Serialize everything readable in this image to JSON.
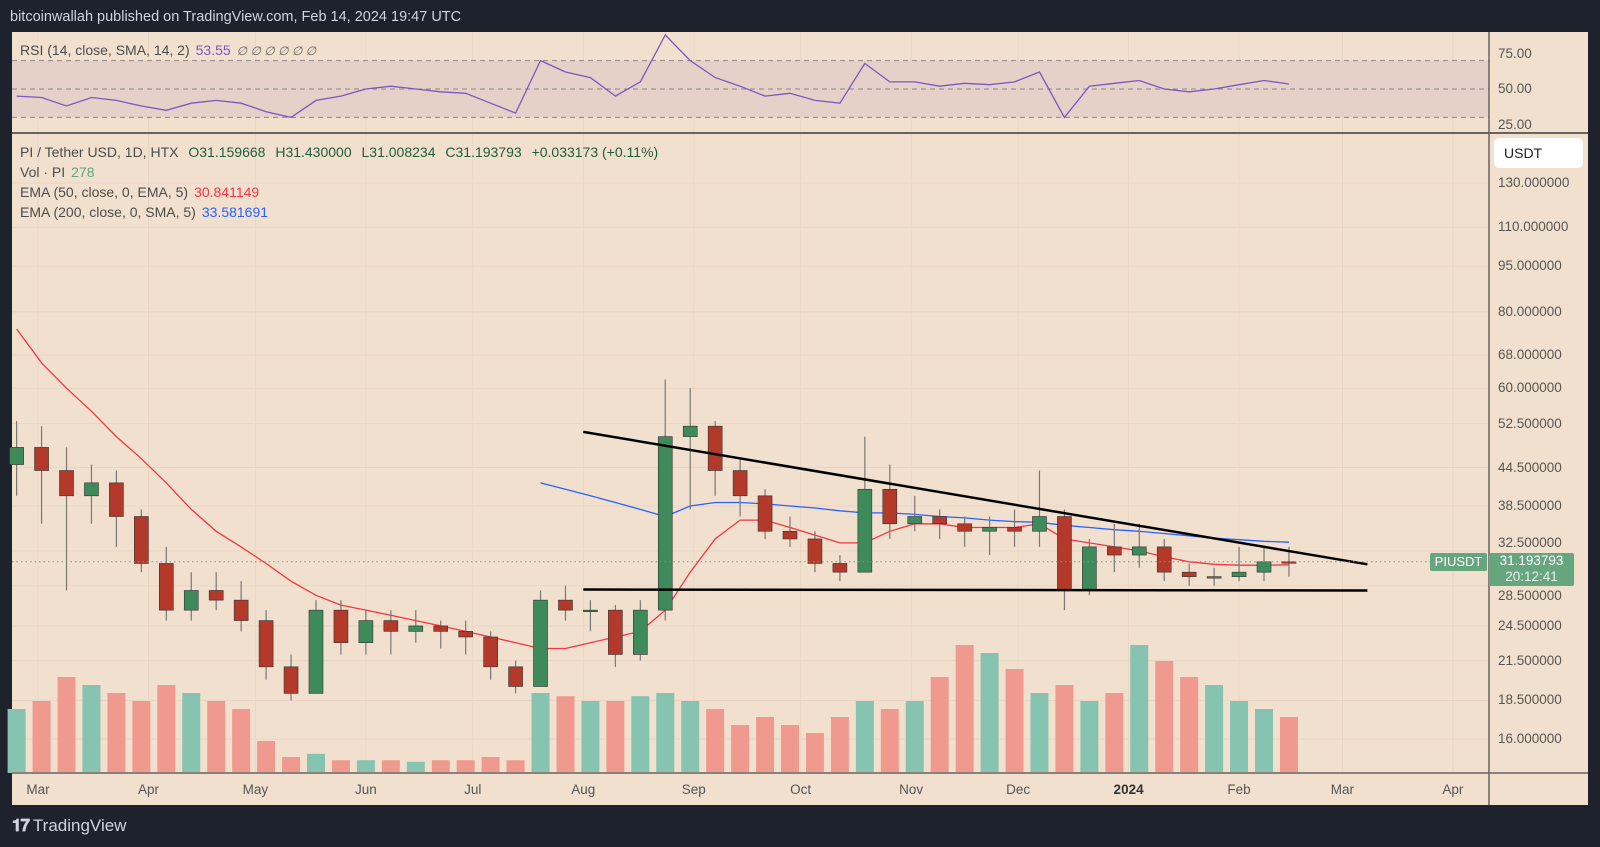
{
  "header": {
    "published": "bitcoinwallah published on TradingView.com, Feb 14, 2024 19:47 UTC"
  },
  "footer": {
    "logo_text": "TradingView"
  },
  "colors": {
    "background": "#f2e0cf",
    "up": "#3f8a5a",
    "down": "#b33a2a",
    "volume_up": "#86c3b0",
    "volume_down": "#f09a8f",
    "ema50": "#f23645",
    "ema200": "#2962ff",
    "rsi": "#7e57c2",
    "trendline": "#000000",
    "last_price": "#65a67f"
  },
  "legend": {
    "rsi": {
      "label": "RSI (14, close, SMA, 14, 2)",
      "value": "53.55",
      "extras": "∅ ∅ ∅ ∅ ∅ ∅"
    },
    "symbol": {
      "label": "PI / Tether USD, 1D, HTX",
      "open": "O31.159668",
      "high": "H31.430000",
      "low": "L31.008234",
      "close": "C31.193793",
      "change": "+0.033173 (+0.11%)"
    },
    "volume": {
      "label": "Vol · PI",
      "value": "278"
    },
    "ema50": {
      "label": "EMA (50, close, 0, EMA, 5)",
      "value": "30.841149"
    },
    "ema200": {
      "label": "EMA (200, close, 0, SMA, 5)",
      "value": "33.581691"
    }
  },
  "price_axis": {
    "currency": "USDT",
    "ticks": [
      "130.000000",
      "110.000000",
      "95.000000",
      "80.000000",
      "68.000000",
      "60.000000",
      "52.500000",
      "44.500000",
      "38.500000",
      "32.500000",
      "28.500000",
      "24.500000",
      "21.500000",
      "18.500000",
      "16.000000"
    ]
  },
  "rsi_axis": {
    "ticks": [
      "75.00",
      "50.00",
      "25.00"
    ]
  },
  "last_price": {
    "symbol": "PIUSDT",
    "price": "31.193793",
    "countdown": "20:12:41"
  },
  "time_axis": {
    "labels": [
      {
        "text": "Mar",
        "date": "2023-03-01"
      },
      {
        "text": "Apr",
        "date": "2023-04-01"
      },
      {
        "text": "May",
        "date": "2023-05-01"
      },
      {
        "text": "Jun",
        "date": "2023-06-01"
      },
      {
        "text": "Jul",
        "date": "2023-07-01"
      },
      {
        "text": "Aug",
        "date": "2023-08-01"
      },
      {
        "text": "Sep",
        "date": "2023-09-01"
      },
      {
        "text": "Oct",
        "date": "2023-10-01"
      },
      {
        "text": "Nov",
        "date": "2023-11-01"
      },
      {
        "text": "Dec",
        "date": "2023-12-01"
      },
      {
        "text": "2024",
        "date": "2024-01-01",
        "bold": true
      },
      {
        "text": "Feb",
        "date": "2024-02-01"
      },
      {
        "text": "Mar",
        "date": "2024-03-01"
      },
      {
        "text": "Apr",
        "date": "2024-04-01"
      }
    ]
  },
  "chart_data": {
    "type": "candlestick",
    "scale": "log",
    "ylim": [
      14.5,
      150
    ],
    "grid": true,
    "x_start_week": "2023-02-20",
    "interval_note": "weekly-aggregated estimate of daily candles",
    "ohlc": [
      [
        45,
        53,
        40,
        48
      ],
      [
        48,
        52,
        36,
        44
      ],
      [
        44,
        48,
        28,
        40
      ],
      [
        40,
        45,
        36,
        42
      ],
      [
        42,
        44,
        33,
        37
      ],
      [
        37,
        38,
        30,
        31
      ],
      [
        31,
        33,
        25,
        26
      ],
      [
        26,
        30,
        25,
        28
      ],
      [
        28,
        30,
        26,
        27
      ],
      [
        27,
        29,
        24,
        25
      ],
      [
        25,
        26,
        20,
        21
      ],
      [
        21,
        22,
        18.5,
        19
      ],
      [
        19,
        27,
        19,
        26
      ],
      [
        26,
        27,
        22,
        23
      ],
      [
        23,
        26,
        22,
        25
      ],
      [
        25,
        26,
        22,
        24
      ],
      [
        24,
        26,
        23,
        24.5
      ],
      [
        24.5,
        25,
        22.5,
        24
      ],
      [
        24,
        25,
        22,
        23.5
      ],
      [
        23.5,
        24,
        20,
        21
      ],
      [
        21,
        21.5,
        19,
        19.5
      ],
      [
        19.5,
        28,
        19.5,
        27
      ],
      [
        27,
        28.5,
        25,
        26
      ],
      [
        26,
        27,
        24,
        26
      ],
      [
        26,
        26.5,
        21,
        22
      ],
      [
        22,
        27,
        21.5,
        26
      ],
      [
        26,
        62,
        25,
        50
      ],
      [
        50,
        60,
        38,
        52
      ],
      [
        52,
        53,
        40,
        44
      ],
      [
        44,
        46,
        37,
        40
      ],
      [
        40,
        41,
        34,
        35
      ],
      [
        35,
        37,
        33,
        34
      ],
      [
        34,
        35,
        30,
        31
      ],
      [
        31,
        32,
        29,
        30
      ],
      [
        30,
        50,
        30,
        41
      ],
      [
        41,
        45,
        34,
        36
      ],
      [
        36,
        40,
        35,
        37
      ],
      [
        37,
        38,
        34,
        36
      ],
      [
        36,
        37,
        33,
        35
      ],
      [
        35,
        37,
        32,
        35.5
      ],
      [
        35.5,
        38,
        33,
        35
      ],
      [
        35,
        44,
        33,
        37
      ],
      [
        37,
        38,
        26,
        28
      ],
      [
        28,
        34,
        27.5,
        33
      ],
      [
        33,
        36,
        30,
        32
      ],
      [
        32,
        36,
        30.5,
        33
      ],
      [
        33,
        34,
        29,
        30
      ],
      [
        30,
        31,
        28.5,
        29.5
      ],
      [
        29.5,
        30.5,
        28.5,
        29.5
      ],
      [
        29.5,
        33,
        29,
        30
      ],
      [
        30,
        33,
        29,
        31.2
      ],
      [
        31.2,
        33,
        29.5,
        31.19
      ]
    ],
    "volume_relative": [
      40,
      45,
      60,
      55,
      50,
      45,
      55,
      50,
      45,
      40,
      20,
      10,
      12,
      8,
      8,
      8,
      7,
      8,
      8,
      10,
      8,
      50,
      48,
      45,
      45,
      48,
      50,
      45,
      40,
      30,
      35,
      30,
      25,
      35,
      45,
      40,
      45,
      60,
      80,
      75,
      65,
      50,
      55,
      45,
      50,
      80,
      70,
      60,
      55,
      45,
      40,
      35
    ],
    "ema50": [
      75,
      66,
      60,
      55,
      50,
      46,
      42,
      38,
      35,
      33,
      31,
      29,
      27.5,
      26.5,
      26,
      25.5,
      25,
      24.5,
      24,
      23.5,
      23,
      22.5,
      22.5,
      23,
      23.5,
      24,
      26,
      30,
      34,
      36.5,
      36.5,
      35.5,
      34.5,
      33.5,
      33.5,
      35,
      36,
      36,
      35.5,
      35.5,
      35.5,
      36,
      34,
      33.5,
      33,
      32.5,
      31.8,
      31.2,
      30.9,
      30.8,
      30.8,
      30.84
    ],
    "ema200": [
      null,
      null,
      null,
      null,
      null,
      null,
      null,
      null,
      null,
      null,
      null,
      null,
      null,
      null,
      null,
      null,
      null,
      null,
      null,
      null,
      null,
      42,
      41,
      40,
      39,
      38,
      37,
      38.5,
      39,
      39,
      38.8,
      38.5,
      38.2,
      37.8,
      37.5,
      37.5,
      37.3,
      37,
      36.8,
      36.5,
      36.3,
      36.2,
      35.8,
      35.5,
      35.2,
      35,
      34.7,
      34.4,
      34.1,
      33.9,
      33.7,
      33.58
    ],
    "rsi": [
      45,
      44,
      38,
      44,
      42,
      38,
      35,
      40,
      42,
      40,
      34,
      30,
      42,
      45,
      50,
      52,
      50,
      48,
      47,
      40,
      33,
      70,
      62,
      58,
      45,
      55,
      88,
      70,
      58,
      52,
      45,
      47,
      42,
      40,
      68,
      55,
      55,
      52,
      54,
      53,
      55,
      62,
      30,
      52,
      54,
      56,
      50,
      48,
      50,
      53,
      56,
      53.55
    ],
    "rsi_levels": [
      70,
      50,
      30
    ],
    "trendlines": [
      {
        "name": "resistance",
        "from": {
          "date": "2023-08-01",
          "price": 50.9
        },
        "to": {
          "date": "2024-03-08",
          "price": 30.9
        }
      },
      {
        "name": "support",
        "from": {
          "date": "2023-08-01",
          "price": 28.1
        },
        "to": {
          "date": "2024-03-08",
          "price": 28.0
        }
      }
    ]
  }
}
